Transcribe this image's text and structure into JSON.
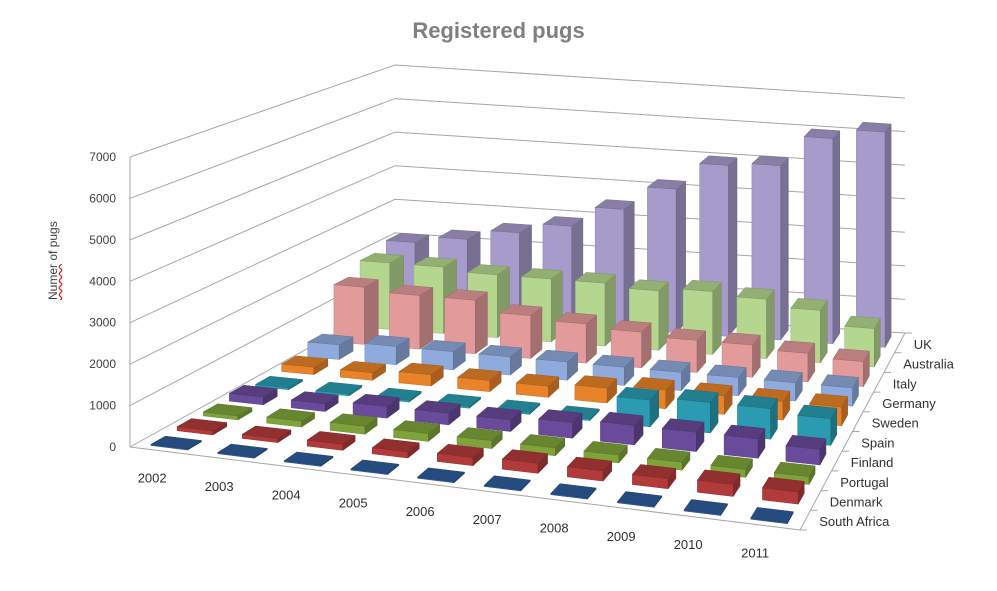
{
  "chart_data": {
    "type": "bar",
    "subtype": "3d-column",
    "title": "Registered pugs",
    "xlabel": "",
    "ylabel": "Numer of pugs",
    "ylim": [
      0,
      7000
    ],
    "yticks": [
      0,
      1000,
      2000,
      3000,
      4000,
      5000,
      6000,
      7000
    ],
    "grid": true,
    "legend_position": "depth-axis (right)",
    "categories": [
      "2002",
      "2003",
      "2004",
      "2005",
      "2006",
      "2007",
      "2008",
      "2009",
      "2010",
      "2011"
    ],
    "series": [
      {
        "name": "South Africa",
        "color": "#2E5C9A",
        "values": [
          30,
          30,
          30,
          30,
          30,
          30,
          30,
          30,
          30,
          30
        ]
      },
      {
        "name": "Denmark",
        "color": "#B23A3A",
        "values": [
          100,
          100,
          150,
          150,
          200,
          250,
          250,
          250,
          300,
          300
        ]
      },
      {
        "name": "Portugal",
        "color": "#7FA33A",
        "values": [
          100,
          150,
          200,
          200,
          200,
          200,
          200,
          200,
          200,
          200
        ]
      },
      {
        "name": "Finland",
        "color": "#6A4A9A",
        "values": [
          200,
          200,
          300,
          300,
          300,
          400,
          500,
          500,
          500,
          400
        ]
      },
      {
        "name": "Spain",
        "color": "#2A9BB0",
        "values": [
          50,
          50,
          50,
          50,
          50,
          50,
          700,
          800,
          800,
          700
        ]
      },
      {
        "name": "Sweden",
        "color": "#E8832A",
        "values": [
          200,
          200,
          300,
          300,
          300,
          400,
          500,
          500,
          500,
          500
        ]
      },
      {
        "name": "Germany",
        "color": "#8FAADC",
        "values": [
          400,
          500,
          500,
          500,
          500,
          500,
          500,
          500,
          500,
          500
        ]
      },
      {
        "name": "Italy",
        "color": "#E39A9A",
        "values": [
          1600,
          1500,
          1500,
          1200,
          1100,
          1000,
          900,
          900,
          800,
          700
        ]
      },
      {
        "name": "Australia",
        "color": "#B5D68E",
        "values": [
          1900,
          1900,
          1800,
          1800,
          1800,
          1700,
          1800,
          1700,
          1500,
          1100
        ]
      },
      {
        "name": "UK",
        "color": "#A79BCB",
        "values": [
          2100,
          2300,
          2600,
          2900,
          3500,
          4200,
          5000,
          5100,
          6000,
          6300
        ]
      }
    ]
  }
}
